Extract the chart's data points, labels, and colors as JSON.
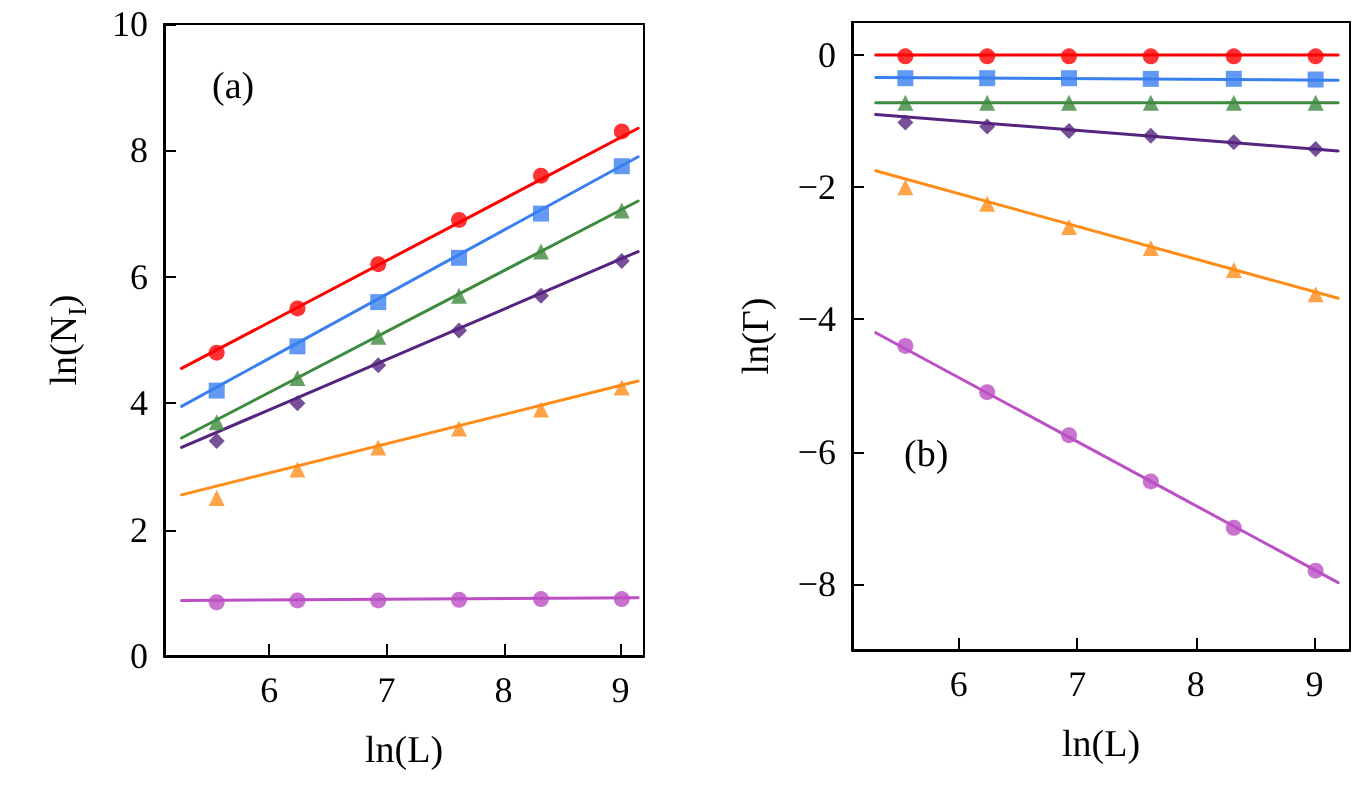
{
  "chart_data": [
    {
      "type": "scatter",
      "xlabel": "ln(L)",
      "ylabel": "ln(N$_{I}$)",
      "annotations": [
        "(a)"
      ],
      "x": [
        5.55,
        6.24,
        6.93,
        7.62,
        8.32,
        9.01
      ],
      "xlim": [
        5.1,
        9.2
      ],
      "xticks": [
        6,
        7,
        8,
        9
      ],
      "ylim": [
        0,
        10
      ],
      "yticks": [
        0,
        2,
        4,
        6,
        8,
        10
      ],
      "grid": false,
      "series": [
        {
          "color": "#ff0000",
          "marker": "circle",
          "values": [
            4.8,
            5.5,
            6.2,
            6.9,
            7.6,
            8.3
          ]
        },
        {
          "color": "#3a7ff0",
          "marker": "square",
          "values": [
            4.2,
            4.9,
            5.6,
            6.3,
            7.0,
            7.75
          ]
        },
        {
          "color": "#3e8a3e",
          "marker": "triangle",
          "values": [
            3.7,
            4.4,
            5.05,
            5.7,
            6.4,
            7.05
          ]
        },
        {
          "color": "#55247e",
          "marker": "diamond",
          "values": [
            3.4,
            4.0,
            4.6,
            5.15,
            5.7,
            6.25
          ]
        },
        {
          "color": "#ff8c1a",
          "marker": "triangle",
          "values": [
            2.5,
            2.95,
            3.3,
            3.6,
            3.9,
            4.25
          ]
        },
        {
          "color": "#bb4fc4",
          "marker": "circle",
          "values": [
            0.85,
            0.88,
            0.88,
            0.89,
            0.9,
            0.9
          ]
        },
        {
          "type": "line",
          "marker": "none",
          "color": "#ff0000",
          "x": [
            5.25,
            9.15
          ],
          "values": [
            4.55,
            8.35
          ]
        },
        {
          "type": "line",
          "marker": "none",
          "color": "#3a7ff0",
          "x": [
            5.25,
            9.15
          ],
          "values": [
            3.95,
            7.9
          ]
        },
        {
          "type": "line",
          "marker": "none",
          "color": "#3e8a3e",
          "x": [
            5.25,
            9.15
          ],
          "values": [
            3.45,
            7.2
          ]
        },
        {
          "type": "line",
          "marker": "none",
          "color": "#55247e",
          "x": [
            5.25,
            9.15
          ],
          "values": [
            3.3,
            6.4
          ]
        },
        {
          "type": "line",
          "marker": "none",
          "color": "#ff8c1a",
          "x": [
            5.25,
            9.15
          ],
          "values": [
            2.55,
            4.35
          ]
        },
        {
          "type": "line",
          "marker": "none",
          "color": "#bb4fc4",
          "x": [
            5.25,
            9.15
          ],
          "values": [
            0.88,
            0.92
          ]
        }
      ]
    },
    {
      "type": "scatter",
      "xlabel": "ln(L)",
      "ylabel": "ln(Γ)",
      "annotations": [
        "(b)"
      ],
      "x": [
        5.55,
        6.24,
        6.93,
        7.62,
        8.32,
        9.01
      ],
      "xlim": [
        5.1,
        9.3
      ],
      "xticks": [
        6,
        7,
        8,
        9
      ],
      "ylim": [
        -9,
        0.5
      ],
      "yticks": [
        -8,
        -6,
        -4,
        -2,
        0
      ],
      "grid": false,
      "series": [
        {
          "color": "#ff0000",
          "marker": "circle",
          "values": [
            -0.02,
            -0.02,
            -0.02,
            -0.02,
            -0.02,
            -0.02
          ]
        },
        {
          "color": "#3a7ff0",
          "marker": "square",
          "values": [
            -0.35,
            -0.35,
            -0.35,
            -0.36,
            -0.36,
            -0.37
          ]
        },
        {
          "color": "#3e8a3e",
          "marker": "triangle",
          "values": [
            -0.72,
            -0.72,
            -0.72,
            -0.72,
            -0.72,
            -0.72
          ]
        },
        {
          "color": "#55247e",
          "marker": "diamond",
          "values": [
            -1.02,
            -1.08,
            -1.15,
            -1.22,
            -1.32,
            -1.42
          ]
        },
        {
          "color": "#ff8c1a",
          "marker": "triangle",
          "values": [
            -2.0,
            -2.25,
            -2.6,
            -2.92,
            -3.25,
            -3.62
          ]
        },
        {
          "color": "#bb4fc4",
          "marker": "circle",
          "values": [
            -4.4,
            -5.1,
            -5.75,
            -6.45,
            -7.15,
            -7.8
          ]
        },
        {
          "type": "line",
          "marker": "none",
          "color": "#ff0000",
          "x": [
            5.3,
            9.2
          ],
          "values": [
            0,
            0
          ]
        },
        {
          "type": "line",
          "marker": "none",
          "color": "#3a7ff0",
          "x": [
            5.3,
            9.2
          ],
          "values": [
            -0.34,
            -0.38
          ]
        },
        {
          "type": "line",
          "marker": "none",
          "color": "#3e8a3e",
          "x": [
            5.3,
            9.2
          ],
          "values": [
            -0.72,
            -0.72
          ]
        },
        {
          "type": "line",
          "marker": "none",
          "color": "#55247e",
          "x": [
            5.3,
            9.2
          ],
          "values": [
            -0.9,
            -1.45
          ]
        },
        {
          "type": "line",
          "marker": "none",
          "color": "#ff8c1a",
          "x": [
            5.3,
            9.2
          ],
          "values": [
            -1.75,
            -3.68
          ]
        },
        {
          "type": "line",
          "marker": "none",
          "color": "#bb4fc4",
          "x": [
            5.3,
            9.2
          ],
          "values": [
            -4.2,
            -7.98
          ]
        }
      ]
    }
  ]
}
